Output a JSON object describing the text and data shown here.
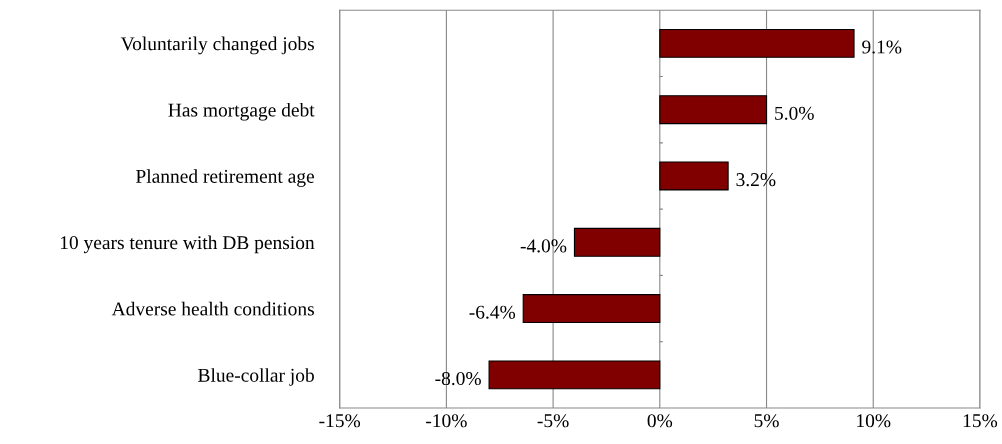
{
  "chart_data": {
    "type": "bar",
    "orientation": "horizontal",
    "categories": [
      "Voluntarily changed jobs",
      "Has mortgage debt",
      "Planned retirement age",
      "10 years tenure with DB pension",
      "Adverse health conditions",
      "Blue-collar job"
    ],
    "values": [
      9.1,
      5.0,
      3.2,
      -4.0,
      -6.4,
      -8.0
    ],
    "value_labels": [
      "9.1%",
      "5.0%",
      "3.2%",
      "-4.0%",
      "-6.4%",
      "-8.0%"
    ],
    "color": "#800000",
    "xlim": [
      -15,
      15
    ],
    "xticks": [
      {
        "value": -15,
        "label": "-15%"
      },
      {
        "value": -10,
        "label": "-10%"
      },
      {
        "value": -5,
        "label": "-5%"
      },
      {
        "value": 0,
        "label": "0%"
      },
      {
        "value": 5,
        "label": "5%"
      },
      {
        "value": 10,
        "label": "10%"
      },
      {
        "value": 15,
        "label": "15%"
      }
    ],
    "grid": "x",
    "legend": false
  }
}
